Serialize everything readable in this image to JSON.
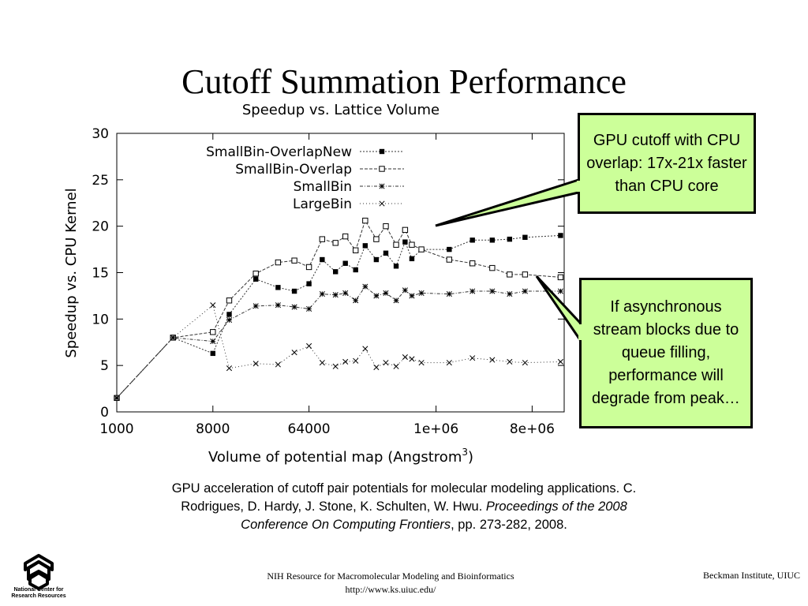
{
  "slide": {
    "title": "Cutoff Summation Performance"
  },
  "callouts": {
    "overlap": "GPU cutoff with CPU overlap: 17x-21x faster than CPU core",
    "stream": "If asynchronous stream blocks due to queue filling, performance will degrade from peak…"
  },
  "citation": {
    "line1": "GPU acceleration of cutoff pair potentials for molecular modeling applications. C. Rodrigues, D. Hardy, J. Stone, K. Schulten, W. Hwu.",
    "venue": "Proceedings of the 2008 Conference On Computing Frontiers",
    "pages": ", pp. 273-282, 2008."
  },
  "footer": {
    "center_line1": "NIH Resource for Macromolecular Modeling and Bioinformatics",
    "center_line2": "http://www.ks.uiuc.edu/",
    "right": "Beckman Institute, UIUC"
  },
  "logo": {
    "icon": "ncrr-logo-icon",
    "text": "National Center for Research Resources"
  },
  "chart_data": {
    "type": "line",
    "title": "Speedup vs. Lattice Volume",
    "xlabel": "Volume of potential map (Angstrom",
    "xlabel_sup": "3",
    "xlabel_end": ")",
    "ylabel": "Speedup vs. CPU Kernel",
    "x_scale": "log",
    "xlim": [
      1000,
      16000000
    ],
    "ylim": [
      0,
      30
    ],
    "x_ticks": [
      1000,
      8000,
      64000,
      1000000,
      8000000
    ],
    "x_tick_labels": [
      "1000",
      "8000",
      "64000",
      "1e+06",
      "8e+06"
    ],
    "y_ticks": [
      0,
      5,
      10,
      15,
      20,
      25,
      30
    ],
    "y_tick_labels": [
      "0",
      "5",
      "10",
      "15",
      "20",
      "25",
      "30"
    ],
    "legend_position": "top-left",
    "grid": false,
    "series": [
      {
        "name": "SmallBin-OverlapNew",
        "marker": "filled-square",
        "color": "#000000",
        "points": [
          [
            1000,
            1.5
          ],
          [
            3375,
            8.0
          ],
          [
            8000,
            6.3
          ],
          [
            11390,
            10.5
          ],
          [
            20250,
            14.3
          ],
          [
            32770,
            13.4
          ],
          [
            46660,
            13.0
          ],
          [
            64000,
            13.8
          ],
          [
            85190,
            16.4
          ],
          [
            113600,
            15.1
          ],
          [
            140600,
            16.0
          ],
          [
            175600,
            15.3
          ],
          [
            216000,
            17.9
          ],
          [
            274600,
            16.4
          ],
          [
            337500,
            17.1
          ],
          [
            421900,
            15.7
          ],
          [
            512000,
            18.3
          ],
          [
            592700,
            16.5
          ],
          [
            729000,
            17.5
          ],
          [
            1331000,
            17.5
          ],
          [
            2197000,
            18.5
          ],
          [
            3375000,
            18.5
          ],
          [
            4913000,
            18.6
          ],
          [
            6860000,
            18.8
          ],
          [
            14800000,
            19.0
          ]
        ]
      },
      {
        "name": "SmallBin-Overlap",
        "marker": "open-square",
        "color": "#000000",
        "points": [
          [
            1000,
            1.5
          ],
          [
            3375,
            8.0
          ],
          [
            8000,
            8.6
          ],
          [
            11390,
            12.0
          ],
          [
            20250,
            14.9
          ],
          [
            32770,
            16.1
          ],
          [
            46660,
            16.3
          ],
          [
            64000,
            15.6
          ],
          [
            85190,
            18.6
          ],
          [
            113600,
            18.2
          ],
          [
            140600,
            18.9
          ],
          [
            175600,
            17.4
          ],
          [
            216000,
            20.6
          ],
          [
            274600,
            18.6
          ],
          [
            337500,
            20.0
          ],
          [
            421900,
            18.0
          ],
          [
            512000,
            19.6
          ],
          [
            592700,
            18.0
          ],
          [
            729000,
            17.5
          ],
          [
            1331000,
            16.4
          ],
          [
            2197000,
            16.0
          ],
          [
            3375000,
            15.5
          ],
          [
            4913000,
            14.8
          ],
          [
            6860000,
            14.8
          ],
          [
            14800000,
            14.5
          ]
        ]
      },
      {
        "name": "SmallBin",
        "marker": "star",
        "color": "#000000",
        "points": [
          [
            1000,
            1.5
          ],
          [
            3375,
            8.0
          ],
          [
            8000,
            7.6
          ],
          [
            11390,
            9.9
          ],
          [
            20250,
            11.4
          ],
          [
            32770,
            11.5
          ],
          [
            46660,
            11.3
          ],
          [
            64000,
            11.1
          ],
          [
            85190,
            12.7
          ],
          [
            113600,
            12.6
          ],
          [
            140600,
            12.8
          ],
          [
            175600,
            12.0
          ],
          [
            216000,
            13.5
          ],
          [
            274600,
            12.5
          ],
          [
            337500,
            12.8
          ],
          [
            421900,
            12.0
          ],
          [
            512000,
            13.1
          ],
          [
            592700,
            12.5
          ],
          [
            729000,
            12.8
          ],
          [
            1331000,
            12.7
          ],
          [
            2197000,
            13.0
          ],
          [
            3375000,
            13.0
          ],
          [
            4913000,
            12.7
          ],
          [
            6860000,
            13.0
          ],
          [
            14800000,
            13.0
          ]
        ]
      },
      {
        "name": "LargeBin",
        "marker": "cross",
        "color": "#000000",
        "points": [
          [
            1000,
            1.5
          ],
          [
            3375,
            8.0
          ],
          [
            8000,
            11.5
          ],
          [
            11390,
            4.7
          ],
          [
            20250,
            5.2
          ],
          [
            32770,
            5.1
          ],
          [
            46660,
            6.4
          ],
          [
            64000,
            7.1
          ],
          [
            85190,
            5.3
          ],
          [
            113600,
            4.9
          ],
          [
            140600,
            5.4
          ],
          [
            175600,
            5.5
          ],
          [
            216000,
            6.8
          ],
          [
            274600,
            4.8
          ],
          [
            337500,
            5.3
          ],
          [
            421900,
            4.9
          ],
          [
            512000,
            5.9
          ],
          [
            592700,
            5.7
          ],
          [
            729000,
            5.3
          ],
          [
            1331000,
            5.3
          ],
          [
            2197000,
            5.8
          ],
          [
            3375000,
            5.6
          ],
          [
            4913000,
            5.4
          ],
          [
            6860000,
            5.3
          ],
          [
            14800000,
            5.4
          ]
        ]
      }
    ]
  }
}
